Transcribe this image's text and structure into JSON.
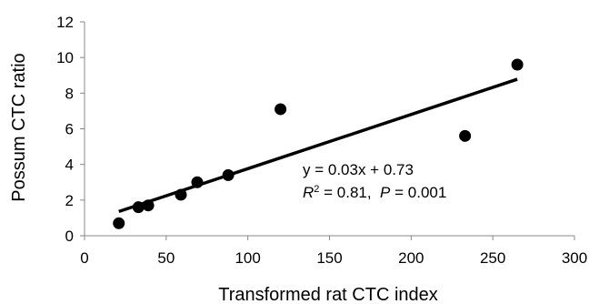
{
  "chart_data": {
    "type": "scatter",
    "title": "",
    "xlabel": "Transformed rat CTC index",
    "ylabel": "Possum CTC ratio",
    "xlim": [
      0,
      300
    ],
    "ylim": [
      0,
      12
    ],
    "xticks": [
      "0",
      "50",
      "100",
      "150",
      "200",
      "250",
      "300"
    ],
    "yticks": [
      "0",
      "2",
      "4",
      "6",
      "8",
      "10",
      "12"
    ],
    "grid": false,
    "legend": "none",
    "marker_color": "#000000",
    "points": [
      {
        "x": 21,
        "y": 0.7
      },
      {
        "x": 33,
        "y": 1.6
      },
      {
        "x": 39,
        "y": 1.7
      },
      {
        "x": 59,
        "y": 2.3
      },
      {
        "x": 69,
        "y": 3.0
      },
      {
        "x": 88,
        "y": 3.4
      },
      {
        "x": 120,
        "y": 7.1
      },
      {
        "x": 233,
        "y": 5.6
      },
      {
        "x": 265,
        "y": 9.6
      }
    ],
    "trendline": {
      "x_range": [
        21,
        265
      ],
      "y_range": [
        1.36,
        8.78
      ],
      "color": "#000000"
    },
    "annotations": {
      "equation": "y = 0.03x + 0.73",
      "r2_symbol": "R",
      "r2_exp": "2",
      "r2_rest": " = 0.81,  ",
      "p_symbol": "P",
      "p_rest": " = 0.001"
    }
  }
}
